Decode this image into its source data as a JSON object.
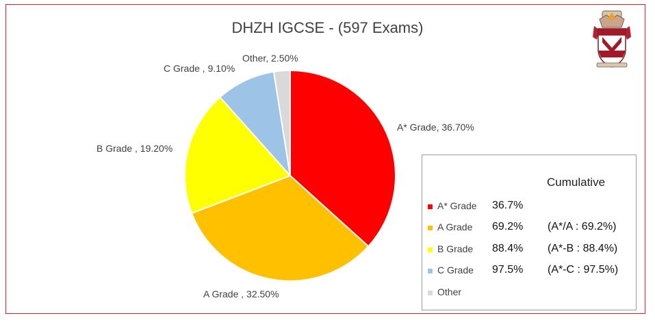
{
  "chart_data": {
    "type": "pie",
    "title": "DHZH IGCSE - (597 Exams)",
    "slices": [
      {
        "label": "A* Grade, 36.70%",
        "name": "A* Grade",
        "value": 36.7,
        "color": "#ff0000"
      },
      {
        "label": "A Grade , 32.50%",
        "name": "A Grade",
        "value": 32.5,
        "color": "#ffc000"
      },
      {
        "label": "B Grade , 19.20%",
        "name": "B Grade",
        "value": 19.2,
        "color": "#ffff00"
      },
      {
        "label": "C Grade , 9.10%",
        "name": "C Grade",
        "value": 9.1,
        "color": "#9dc3e6"
      },
      {
        "label": "Other, 2.50%",
        "name": "Other",
        "value": 2.5,
        "color": "#d9d9d9"
      }
    ]
  },
  "legend": {
    "header": "Cumulative",
    "rows": [
      {
        "name": "A* Grade",
        "pct": "36.7%",
        "cumulative": "",
        "color": "#ff0000"
      },
      {
        "name": "A Grade",
        "pct": "69.2%",
        "cumulative": "(A*/A : 69.2%)",
        "color": "#ffc000"
      },
      {
        "name": "B Grade",
        "pct": "88.4%",
        "cumulative": "(A*-B : 88.4%)",
        "color": "#ffff00"
      },
      {
        "name": "C Grade",
        "pct": "97.5%",
        "cumulative": "(A*-C : 97.5%)",
        "color": "#9dc3e6"
      },
      {
        "name": "Other",
        "pct": "",
        "cumulative": "",
        "color": "#d9d9d9"
      }
    ]
  },
  "frame_color": "#e81c1c",
  "logo_icon": "school-crest-icon"
}
